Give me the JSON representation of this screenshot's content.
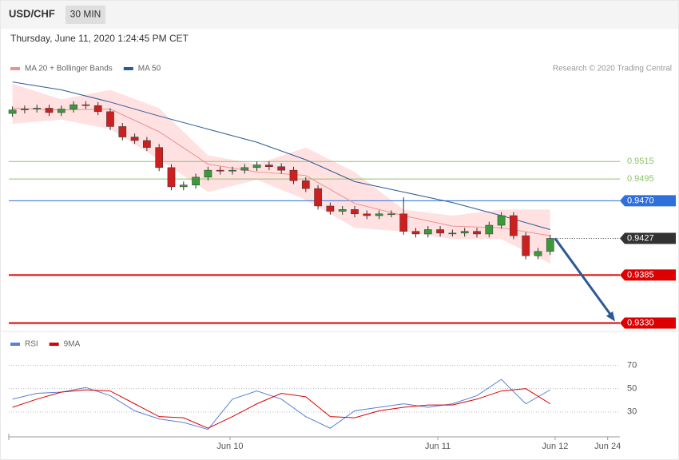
{
  "chart_data": {
    "type": "candlestick",
    "title": "USD/CHF",
    "interval": "30 MIN",
    "timestamp": "Thursday, June 11, 2020 1:24:45 PM CET",
    "credit": "Research © 2020 Trading Central",
    "up_color": "#3a9a3a",
    "down_color": "#cc2020",
    "xlim": [
      -0.3,
      49.7
    ],
    "xticks": [
      {
        "value": 17.8,
        "label": "Jun 10"
      },
      {
        "value": 34.8,
        "label": "Jun 11"
      },
      {
        "value": 44.4,
        "label": "Jun 12"
      },
      {
        "value": 48.7,
        "label": "Jun 24"
      }
    ],
    "ylim": [
      0.9325,
      0.9613
    ],
    "candles": {
      "open": [
        0.957,
        0.9574,
        0.9575,
        0.9576,
        0.9571,
        0.9575,
        0.958,
        0.9579,
        0.9572,
        0.9555,
        0.9543,
        0.9539,
        0.9531,
        0.9508,
        0.9486,
        0.9488,
        0.9497,
        0.9505,
        0.9504,
        0.9505,
        0.9508,
        0.9511,
        0.9509,
        0.9505,
        0.9493,
        0.9484,
        0.9464,
        0.9458,
        0.946,
        0.9455,
        0.9453,
        0.9455,
        0.9455,
        0.9435,
        0.9432,
        0.9437,
        0.9433,
        0.9433,
        0.9435,
        0.9432,
        0.9442,
        0.9453,
        0.943,
        0.9407,
        0.9412
      ],
      "high": [
        0.9578,
        0.9579,
        0.958,
        0.958,
        0.9579,
        0.9584,
        0.9584,
        0.9583,
        0.9576,
        0.9559,
        0.9547,
        0.9543,
        0.9535,
        0.9512,
        0.9492,
        0.9501,
        0.9509,
        0.9509,
        0.9509,
        0.9512,
        0.9515,
        0.9515,
        0.9513,
        0.9509,
        0.9497,
        0.9488,
        0.9468,
        0.9464,
        0.9464,
        0.9459,
        0.9459,
        0.9459,
        0.9474,
        0.9439,
        0.9441,
        0.9441,
        0.9437,
        0.9439,
        0.9439,
        0.9446,
        0.9457,
        0.9457,
        0.9434,
        0.9416,
        0.9431
      ],
      "low": [
        0.9566,
        0.957,
        0.9571,
        0.9567,
        0.9567,
        0.9571,
        0.9575,
        0.9568,
        0.9551,
        0.9539,
        0.9535,
        0.9527,
        0.9504,
        0.9482,
        0.9482,
        0.9484,
        0.9493,
        0.95,
        0.95,
        0.9501,
        0.9504,
        0.9505,
        0.9501,
        0.9489,
        0.948,
        0.946,
        0.9454,
        0.9454,
        0.9451,
        0.9449,
        0.9449,
        0.9451,
        0.9431,
        0.9428,
        0.9428,
        0.9429,
        0.9429,
        0.9429,
        0.9428,
        0.9428,
        0.9438,
        0.9426,
        0.9403,
        0.9403,
        0.9408
      ],
      "close": [
        0.9574,
        0.9575,
        0.9576,
        0.9571,
        0.9575,
        0.958,
        0.9579,
        0.9572,
        0.9555,
        0.9543,
        0.9539,
        0.9531,
        0.9508,
        0.9486,
        0.9488,
        0.9497,
        0.9505,
        0.9504,
        0.9505,
        0.9508,
        0.9511,
        0.9509,
        0.9505,
        0.9493,
        0.9484,
        0.9464,
        0.9458,
        0.946,
        0.9455,
        0.9453,
        0.9455,
        0.9455,
        0.9435,
        0.9432,
        0.9437,
        0.9433,
        0.9433,
        0.9435,
        0.9432,
        0.9442,
        0.9453,
        0.943,
        0.9407,
        0.9412,
        0.9427
      ]
    },
    "series": [
      {
        "name": "MA 20 + Bollinger Bands",
        "color": "#f09090",
        "band_color": "#ffdada",
        "x": [
          0,
          4,
          8,
          12,
          16,
          20,
          24,
          28,
          32,
          36,
          40,
          44
        ],
        "values": [
          0.9576,
          0.9574,
          0.9575,
          0.9549,
          0.9512,
          0.9503,
          0.9499,
          0.9467,
          0.9453,
          0.9441,
          0.9439,
          0.943
        ],
        "upper": [
          0.9604,
          0.9586,
          0.9597,
          0.9576,
          0.9522,
          0.9512,
          0.9531,
          0.9503,
          0.946,
          0.9453,
          0.946,
          0.946
        ],
        "lower": [
          0.9558,
          0.9563,
          0.9552,
          0.9517,
          0.948,
          0.9494,
          0.9471,
          0.9439,
          0.9435,
          0.9426,
          0.9426,
          0.9398
        ]
      },
      {
        "name": "MA 50",
        "color": "#2d5a96",
        "x": [
          0,
          4,
          8,
          12,
          16,
          20,
          24,
          28,
          32,
          36,
          40,
          44
        ],
        "values": [
          0.9606,
          0.9597,
          0.9583,
          0.9567,
          0.9552,
          0.9537,
          0.9517,
          0.9492,
          0.948,
          0.9468,
          0.9453,
          0.9437
        ]
      }
    ],
    "levels": [
      {
        "value": 0.9515,
        "label": "0.9515",
        "color": "#8cc46a",
        "style": "text"
      },
      {
        "value": 0.9495,
        "label": "0.9495",
        "color": "#8cc46a",
        "style": "text"
      },
      {
        "value": 0.947,
        "label": "0.9470",
        "color": "#2f6fdc",
        "style": "box"
      },
      {
        "value": 0.9427,
        "label": "0.9427",
        "color": "#333333",
        "style": "current"
      },
      {
        "value": 0.9385,
        "label": "0.9385",
        "color": "#dd0000",
        "style": "box"
      },
      {
        "value": 0.933,
        "label": "0.9330",
        "color": "#dd0000",
        "style": "box"
      }
    ],
    "rsi": {
      "ylim": [
        10,
        82
      ],
      "yticks": [
        70,
        50,
        30
      ],
      "series": [
        {
          "name": "RSI",
          "color": "#5b7fd4",
          "x": [
            0,
            2,
            4,
            6,
            8,
            10,
            12,
            14,
            16,
            18,
            20,
            22,
            24,
            26,
            28,
            30,
            32,
            34,
            36,
            38,
            40,
            42,
            44
          ],
          "values": [
            41,
            46,
            47,
            51,
            44,
            31,
            24,
            21,
            15,
            41,
            48,
            41,
            26,
            16,
            31,
            34,
            37,
            34,
            37,
            44,
            58,
            37,
            49
          ]
        },
        {
          "name": "9MA",
          "color": "#dd0000",
          "x": [
            0,
            2,
            4,
            6,
            8,
            10,
            12,
            14,
            16,
            18,
            20,
            22,
            24,
            26,
            28,
            30,
            32,
            34,
            36,
            38,
            40,
            42,
            44
          ],
          "values": [
            34,
            41,
            47,
            49,
            48,
            37,
            26,
            25,
            16,
            26,
            37,
            46,
            43,
            26,
            25,
            31,
            34,
            36,
            36,
            41,
            48,
            50,
            37
          ]
        }
      ]
    }
  }
}
